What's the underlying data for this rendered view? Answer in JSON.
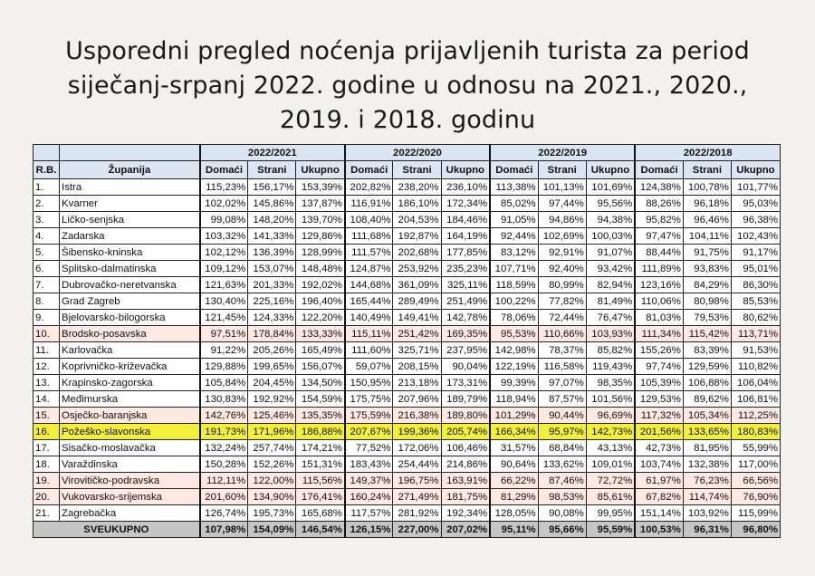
{
  "title": [
    "Usporedni pregled noćenja prijavljenih turista za period",
    "siječanj-srpanj 2022. godine u odnosu na 2021., 2020.,",
    "2019. i 2018. godinu"
  ],
  "table": {
    "col_rb": "R.B.",
    "col_zupanija": "Županija",
    "periods": [
      "2022/2021",
      "2022/2020",
      "2022/2019",
      "2022/2018"
    ],
    "subcols": [
      "Domaći",
      "Strani",
      "Ukupno"
    ],
    "highlight_colors": {
      "pink": "#fde8e2",
      "yellow": "#f2f03a",
      "total": "#c6c6c6",
      "header": "#dce6f2"
    },
    "rows": [
      {
        "rb": "1.",
        "name": "Istra",
        "hl": "",
        "v": [
          "115,23%",
          "156,17%",
          "153,39%",
          "202,82%",
          "238,20%",
          "236,10%",
          "113,38%",
          "101,13%",
          "101,69%",
          "124,38%",
          "100,78%",
          "101,77%"
        ]
      },
      {
        "rb": "2.",
        "name": "Kvarner",
        "hl": "",
        "v": [
          "102,02%",
          "145,86%",
          "137,87%",
          "116,91%",
          "186,10%",
          "172,34%",
          "85,02%",
          "97,44%",
          "95,56%",
          "88,26%",
          "96,18%",
          "95,03%"
        ]
      },
      {
        "rb": "3.",
        "name": "Ličko-senjska",
        "hl": "",
        "v": [
          "99,08%",
          "148,20%",
          "139,70%",
          "108,40%",
          "204,53%",
          "184,46%",
          "91,05%",
          "94,86%",
          "94,38%",
          "95,82%",
          "96,46%",
          "96,38%"
        ]
      },
      {
        "rb": "4.",
        "name": "Zadarska",
        "hl": "",
        "v": [
          "103,32%",
          "141,33%",
          "129,86%",
          "111,68%",
          "192,87%",
          "164,19%",
          "92,44%",
          "102,69%",
          "100,03%",
          "97,47%",
          "104,11%",
          "102,43%"
        ]
      },
      {
        "rb": "5.",
        "name": "Šibensko-kninska",
        "hl": "",
        "v": [
          "102,12%",
          "136,39%",
          "128,99%",
          "111,57%",
          "202,68%",
          "177,85%",
          "83,12%",
          "92,91%",
          "91,07%",
          "88,44%",
          "91,75%",
          "91,17%"
        ]
      },
      {
        "rb": "6.",
        "name": "Splitsko-dalmatinska",
        "hl": "",
        "v": [
          "109,12%",
          "153,07%",
          "148,48%",
          "124,87%",
          "253,92%",
          "235,23%",
          "107,71%",
          "92,40%",
          "93,42%",
          "111,89%",
          "93,83%",
          "95,01%"
        ]
      },
      {
        "rb": "7.",
        "name": "Dubrovačko-neretvanska",
        "hl": "",
        "v": [
          "121,63%",
          "201,33%",
          "192,02%",
          "144,68%",
          "361,09%",
          "325,11%",
          "118,59%",
          "80,99%",
          "82,94%",
          "123,16%",
          "84,29%",
          "86,30%"
        ]
      },
      {
        "rb": "8.",
        "name": "Grad Zagreb",
        "hl": "",
        "v": [
          "130,40%",
          "225,16%",
          "196,40%",
          "165,44%",
          "289,49%",
          "251,49%",
          "100,22%",
          "77,82%",
          "81,49%",
          "110,06%",
          "80,98%",
          "85,53%"
        ]
      },
      {
        "rb": "9.",
        "name": "Bjelovarsko-bilogorska",
        "hl": "",
        "v": [
          "121,45%",
          "124,33%",
          "122,20%",
          "140,49%",
          "149,41%",
          "142,78%",
          "78,06%",
          "72,44%",
          "76,47%",
          "81,03%",
          "79,53%",
          "80,62%"
        ]
      },
      {
        "rb": "10.",
        "name": "Brodsko-posavska",
        "hl": "pink",
        "v": [
          "97,51%",
          "178,84%",
          "133,33%",
          "115,11%",
          "251,42%",
          "169,35%",
          "95,53%",
          "110,66%",
          "103,93%",
          "111,34%",
          "115,42%",
          "113,71%"
        ]
      },
      {
        "rb": "11.",
        "name": "Karlovačka",
        "hl": "",
        "v": [
          "91,22%",
          "205,26%",
          "165,49%",
          "111,60%",
          "325,71%",
          "237,95%",
          "142,98%",
          "78,37%",
          "85,82%",
          "155,26%",
          "83,39%",
          "91,53%"
        ]
      },
      {
        "rb": "12.",
        "name": "Koprivničko-križevačka",
        "hl": "",
        "v": [
          "129,88%",
          "199,65%",
          "156,07%",
          "59,07%",
          "208,15%",
          "90,04%",
          "122,19%",
          "116,58%",
          "119,43%",
          "97,74%",
          "129,59%",
          "110,82%"
        ]
      },
      {
        "rb": "13.",
        "name": "Krapinsko-zagorska",
        "hl": "",
        "v": [
          "105,84%",
          "204,45%",
          "134,50%",
          "150,95%",
          "213,18%",
          "173,31%",
          "99,39%",
          "97,07%",
          "98,35%",
          "105,39%",
          "106,88%",
          "106,04%"
        ]
      },
      {
        "rb": "14.",
        "name": "Međimurska",
        "hl": "",
        "v": [
          "130,83%",
          "192,92%",
          "154,59%",
          "175,75%",
          "207,96%",
          "189,79%",
          "118,94%",
          "87,57%",
          "101,56%",
          "129,53%",
          "89,62%",
          "106,81%"
        ]
      },
      {
        "rb": "15.",
        "name": "Osječko-baranjska",
        "hl": "pink",
        "v": [
          "142,76%",
          "125,46%",
          "135,35%",
          "175,59%",
          "216,38%",
          "189,80%",
          "101,29%",
          "90,44%",
          "96,69%",
          "117,32%",
          "105,34%",
          "112,25%"
        ]
      },
      {
        "rb": "16.",
        "name": "Požeško-slavonska",
        "hl": "yellow",
        "v": [
          "191,73%",
          "171,96%",
          "186,88%",
          "207,67%",
          "199,36%",
          "205,74%",
          "166,34%",
          "95,97%",
          "142,73%",
          "201,56%",
          "133,65%",
          "180,83%"
        ]
      },
      {
        "rb": "17.",
        "name": "Sisačko-moslavačka",
        "hl": "",
        "v": [
          "132,24%",
          "257,74%",
          "174,21%",
          "77,52%",
          "172,06%",
          "106,46%",
          "31,57%",
          "68,84%",
          "43,13%",
          "42,73%",
          "81,95%",
          "55,99%"
        ]
      },
      {
        "rb": "18.",
        "name": "Varaždinska",
        "hl": "",
        "v": [
          "150,28%",
          "152,26%",
          "151,31%",
          "183,43%",
          "254,44%",
          "214,86%",
          "90,64%",
          "133,62%",
          "109,01%",
          "103,74%",
          "132,38%",
          "117,00%"
        ]
      },
      {
        "rb": "19.",
        "name": "Virovitičko-podravska",
        "hl": "pink",
        "v": [
          "112,11%",
          "122,00%",
          "115,56%",
          "149,37%",
          "196,75%",
          "163,91%",
          "66,22%",
          "87,46%",
          "72,72%",
          "61,97%",
          "76,23%",
          "66,56%"
        ]
      },
      {
        "rb": "20.",
        "name": "Vukovarsko-srijemska",
        "hl": "pink",
        "v": [
          "201,60%",
          "134,90%",
          "176,41%",
          "160,24%",
          "271,49%",
          "181,75%",
          "81,29%",
          "98,53%",
          "85,61%",
          "67,82%",
          "114,74%",
          "76,90%"
        ]
      },
      {
        "rb": "21.",
        "name": "Zagrebačka",
        "hl": "",
        "v": [
          "126,74%",
          "195,73%",
          "165,68%",
          "117,57%",
          "281,92%",
          "192,34%",
          "128,05%",
          "90,08%",
          "99,95%",
          "151,14%",
          "103,92%",
          "115,99%"
        ]
      }
    ],
    "total": {
      "label": "SVEUKUPNO",
      "v": [
        "107,98%",
        "154,09%",
        "146,54%",
        "126,15%",
        "227,00%",
        "207,02%",
        "95,11%",
        "95,66%",
        "95,59%",
        "100,53%",
        "96,31%",
        "96,80%"
      ]
    }
  }
}
